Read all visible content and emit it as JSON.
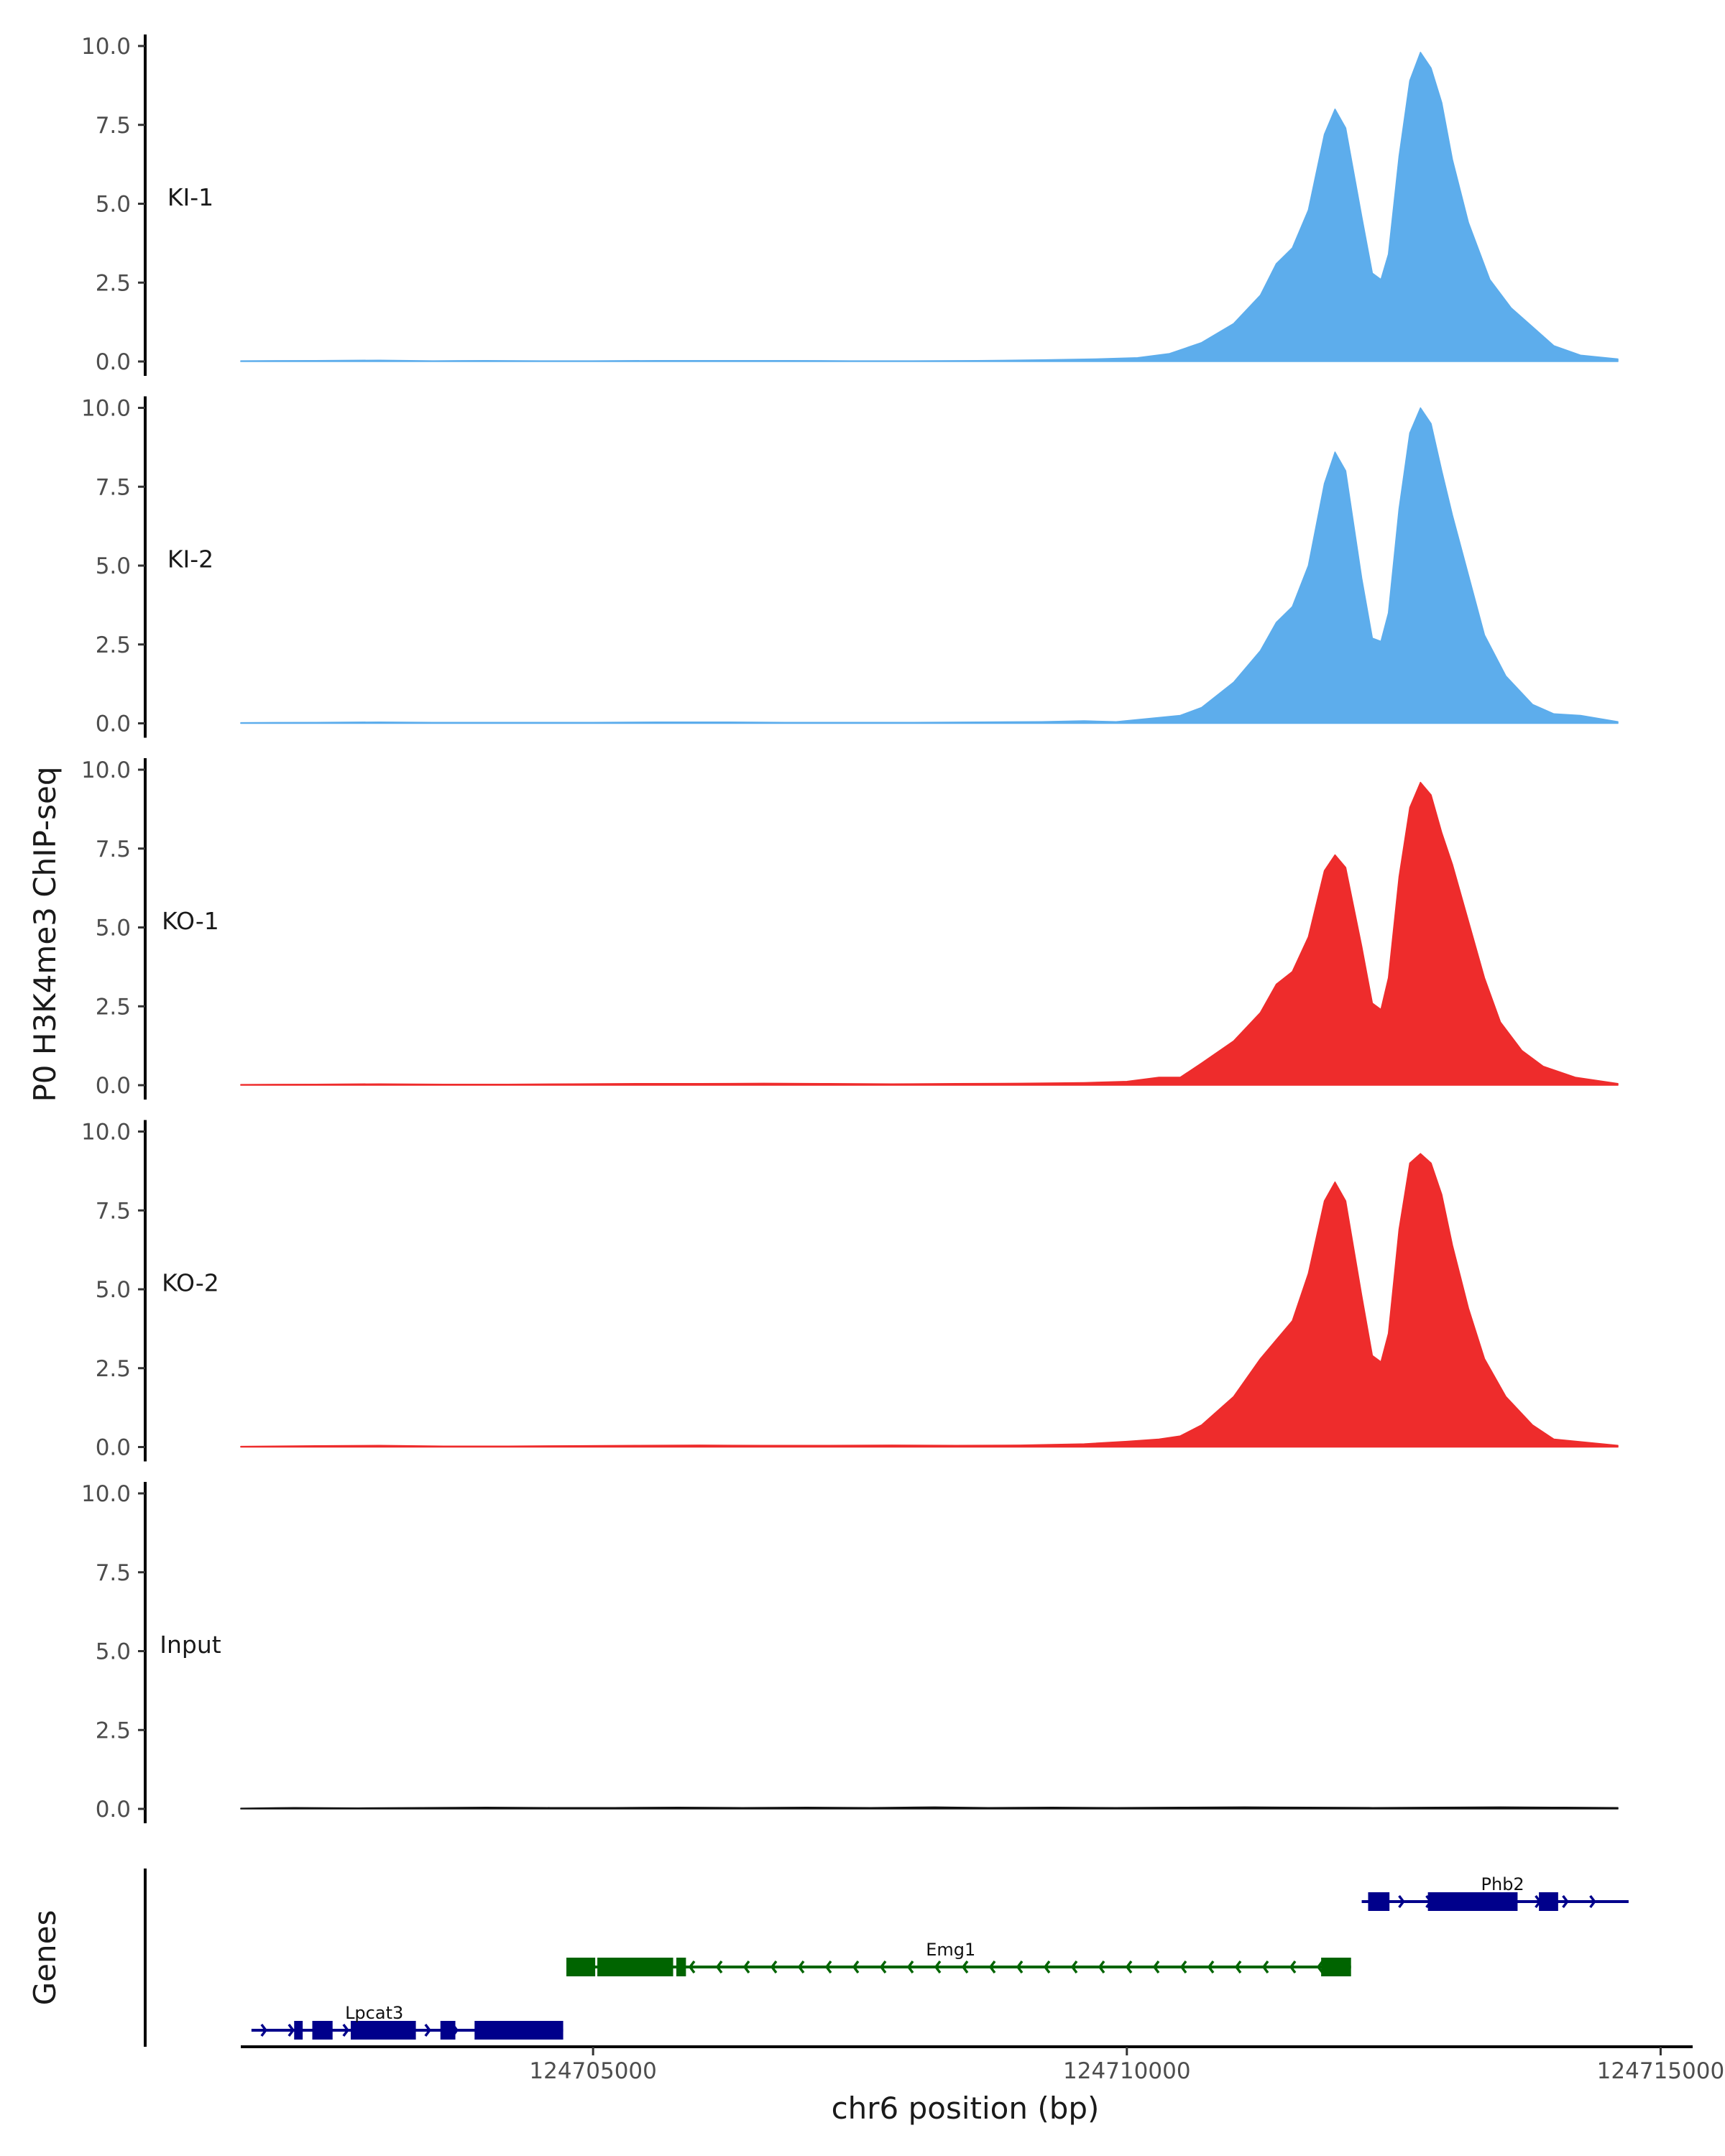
{
  "chart_data": {
    "type": "area",
    "ylabel": "P0 H3K4me3 ChIP-seq",
    "xlabel": "chr6 position (bp)",
    "xlim": [
      124701700,
      124715300
    ],
    "ylim": [
      0,
      10
    ],
    "y_ticks": [
      "0.0",
      "2.5",
      "5.0",
      "7.5",
      "10.0"
    ],
    "x_ticks": [
      {
        "value": 124705000,
        "label": "124705000"
      },
      {
        "value": 124710000,
        "label": "124710000"
      },
      {
        "value": 124715000,
        "label": "124715000"
      }
    ],
    "grid": false,
    "tracks": [
      {
        "label": "KI-1",
        "color": "#5DADEC",
        "points": [
          [
            124701700,
            0.02
          ],
          [
            124702400,
            0.03
          ],
          [
            124703000,
            0.04
          ],
          [
            124703500,
            0.02
          ],
          [
            124704000,
            0.03
          ],
          [
            124704500,
            0.02
          ],
          [
            124705000,
            0.02
          ],
          [
            124705600,
            0.03
          ],
          [
            124706200,
            0.03
          ],
          [
            124706800,
            0.03
          ],
          [
            124707400,
            0.02
          ],
          [
            124708000,
            0.02
          ],
          [
            124708600,
            0.03
          ],
          [
            124709200,
            0.05
          ],
          [
            124709700,
            0.08
          ],
          [
            124710100,
            0.12
          ],
          [
            124710400,
            0.25
          ],
          [
            124710700,
            0.6
          ],
          [
            124711000,
            1.2
          ],
          [
            124711250,
            2.1
          ],
          [
            124711400,
            3.1
          ],
          [
            124711550,
            3.6
          ],
          [
            124711700,
            4.8
          ],
          [
            124711850,
            7.2
          ],
          [
            124711950,
            8.0
          ],
          [
            124712050,
            7.4
          ],
          [
            124712200,
            4.6
          ],
          [
            124712300,
            2.8
          ],
          [
            124712380,
            2.6
          ],
          [
            124712450,
            3.4
          ],
          [
            124712550,
            6.5
          ],
          [
            124712650,
            8.9
          ],
          [
            124712750,
            9.8
          ],
          [
            124712850,
            9.3
          ],
          [
            124712950,
            8.2
          ],
          [
            124713050,
            6.4
          ],
          [
            124713200,
            4.4
          ],
          [
            124713400,
            2.6
          ],
          [
            124713600,
            1.7
          ],
          [
            124713800,
            1.1
          ],
          [
            124714000,
            0.5
          ],
          [
            124714250,
            0.2
          ],
          [
            124714600,
            0.08
          ]
        ]
      },
      {
        "label": "KI-2",
        "color": "#5DADEC",
        "points": [
          [
            124701700,
            0.02
          ],
          [
            124702400,
            0.03
          ],
          [
            124703000,
            0.04
          ],
          [
            124703500,
            0.03
          ],
          [
            124704000,
            0.03
          ],
          [
            124704500,
            0.03
          ],
          [
            124705000,
            0.03
          ],
          [
            124705600,
            0.04
          ],
          [
            124706200,
            0.04
          ],
          [
            124706800,
            0.03
          ],
          [
            124707400,
            0.03
          ],
          [
            124708000,
            0.03
          ],
          [
            124708600,
            0.04
          ],
          [
            124709200,
            0.05
          ],
          [
            124709600,
            0.08
          ],
          [
            124709900,
            0.05
          ],
          [
            124710200,
            0.15
          ],
          [
            124710500,
            0.25
          ],
          [
            124710700,
            0.5
          ],
          [
            124711000,
            1.3
          ],
          [
            124711250,
            2.3
          ],
          [
            124711400,
            3.2
          ],
          [
            124711550,
            3.7
          ],
          [
            124711700,
            5.0
          ],
          [
            124711850,
            7.6
          ],
          [
            124711950,
            8.6
          ],
          [
            124712050,
            8.0
          ],
          [
            124712200,
            4.6
          ],
          [
            124712300,
            2.7
          ],
          [
            124712380,
            2.6
          ],
          [
            124712450,
            3.5
          ],
          [
            124712550,
            6.8
          ],
          [
            124712650,
            9.2
          ],
          [
            124712750,
            10.0
          ],
          [
            124712850,
            9.5
          ],
          [
            124712950,
            8.0
          ],
          [
            124713050,
            6.6
          ],
          [
            124713200,
            4.7
          ],
          [
            124713350,
            2.8
          ],
          [
            124713550,
            1.5
          ],
          [
            124713800,
            0.6
          ],
          [
            124714000,
            0.3
          ],
          [
            124714250,
            0.25
          ],
          [
            124714600,
            0.05
          ]
        ]
      },
      {
        "label": "KO-1",
        "color": "#EE2C2C",
        "points": [
          [
            124701700,
            0.02
          ],
          [
            124702400,
            0.03
          ],
          [
            124703000,
            0.04
          ],
          [
            124703600,
            0.03
          ],
          [
            124704200,
            0.03
          ],
          [
            124704800,
            0.04
          ],
          [
            124705400,
            0.05
          ],
          [
            124706000,
            0.05
          ],
          [
            124706600,
            0.06
          ],
          [
            124707200,
            0.05
          ],
          [
            124707800,
            0.04
          ],
          [
            124708400,
            0.05
          ],
          [
            124709000,
            0.06
          ],
          [
            124709600,
            0.08
          ],
          [
            124710000,
            0.12
          ],
          [
            124710300,
            0.25
          ],
          [
            124710500,
            0.25
          ],
          [
            124710700,
            0.7
          ],
          [
            124711000,
            1.4
          ],
          [
            124711250,
            2.3
          ],
          [
            124711400,
            3.2
          ],
          [
            124711550,
            3.6
          ],
          [
            124711700,
            4.7
          ],
          [
            124711850,
            6.8
          ],
          [
            124711950,
            7.3
          ],
          [
            124712050,
            6.9
          ],
          [
            124712200,
            4.4
          ],
          [
            124712300,
            2.6
          ],
          [
            124712380,
            2.4
          ],
          [
            124712450,
            3.4
          ],
          [
            124712550,
            6.6
          ],
          [
            124712650,
            8.8
          ],
          [
            124712750,
            9.6
          ],
          [
            124712850,
            9.2
          ],
          [
            124712950,
            8.0
          ],
          [
            124713050,
            7.0
          ],
          [
            124713200,
            5.2
          ],
          [
            124713350,
            3.4
          ],
          [
            124713500,
            2.0
          ],
          [
            124713700,
            1.1
          ],
          [
            124713900,
            0.6
          ],
          [
            124714200,
            0.25
          ],
          [
            124714600,
            0.05
          ]
        ]
      },
      {
        "label": "KO-2",
        "color": "#EE2C2C",
        "points": [
          [
            124701700,
            0.02
          ],
          [
            124702400,
            0.04
          ],
          [
            124703000,
            0.05
          ],
          [
            124703600,
            0.03
          ],
          [
            124704200,
            0.03
          ],
          [
            124704800,
            0.04
          ],
          [
            124705400,
            0.05
          ],
          [
            124706000,
            0.06
          ],
          [
            124706600,
            0.05
          ],
          [
            124707200,
            0.05
          ],
          [
            124707800,
            0.06
          ],
          [
            124708400,
            0.05
          ],
          [
            124709000,
            0.06
          ],
          [
            124709600,
            0.1
          ],
          [
            124710000,
            0.18
          ],
          [
            124710300,
            0.25
          ],
          [
            124710500,
            0.35
          ],
          [
            124710700,
            0.7
          ],
          [
            124711000,
            1.6
          ],
          [
            124711250,
            2.8
          ],
          [
            124711400,
            3.4
          ],
          [
            124711550,
            4.0
          ],
          [
            124711700,
            5.5
          ],
          [
            124711850,
            7.8
          ],
          [
            124711950,
            8.4
          ],
          [
            124712050,
            7.8
          ],
          [
            124712200,
            4.8
          ],
          [
            124712300,
            2.9
          ],
          [
            124712380,
            2.7
          ],
          [
            124712450,
            3.6
          ],
          [
            124712550,
            6.9
          ],
          [
            124712650,
            9.0
          ],
          [
            124712750,
            9.3
          ],
          [
            124712850,
            9.0
          ],
          [
            124712950,
            8.0
          ],
          [
            124713050,
            6.4
          ],
          [
            124713200,
            4.4
          ],
          [
            124713350,
            2.8
          ],
          [
            124713550,
            1.6
          ],
          [
            124713800,
            0.7
          ],
          [
            124714000,
            0.25
          ],
          [
            124714300,
            0.15
          ],
          [
            124714600,
            0.05
          ]
        ]
      },
      {
        "label": "Input",
        "color": "#111111",
        "points": [
          [
            124701700,
            0.02
          ],
          [
            124702200,
            0.04
          ],
          [
            124702800,
            0.03
          ],
          [
            124703400,
            0.04
          ],
          [
            124704000,
            0.05
          ],
          [
            124704600,
            0.04
          ],
          [
            124705200,
            0.04
          ],
          [
            124705800,
            0.05
          ],
          [
            124706400,
            0.04
          ],
          [
            124707000,
            0.05
          ],
          [
            124707600,
            0.04
          ],
          [
            124708200,
            0.06
          ],
          [
            124708700,
            0.04
          ],
          [
            124709300,
            0.05
          ],
          [
            124709900,
            0.04
          ],
          [
            124710500,
            0.05
          ],
          [
            124711100,
            0.06
          ],
          [
            124711700,
            0.05
          ],
          [
            124712300,
            0.04
          ],
          [
            124712900,
            0.05
          ],
          [
            124713500,
            0.06
          ],
          [
            124714100,
            0.05
          ],
          [
            124714600,
            0.04
          ]
        ]
      }
    ],
    "genes": {
      "label": "Genes",
      "items": [
        {
          "name": "Phb2",
          "strand": "+",
          "color": "#00008B",
          "row": 0,
          "start": 124712200,
          "end": 124714700,
          "exons": [
            [
              124712260,
              124712460
            ],
            [
              124712820,
              124713660
            ],
            [
              124713860,
              124714040
            ]
          ],
          "label_pos": 124713520
        },
        {
          "name": "Emg1",
          "strand": "-",
          "color": "#006400",
          "row": 1,
          "start": 124704750,
          "end": 124712100,
          "exons": [
            [
              124704750,
              124705020
            ],
            [
              124705040,
              124705750
            ],
            [
              124705780,
              124705870
            ],
            [
              124711820,
              124712100
            ]
          ],
          "label_pos": 124708350
        },
        {
          "name": "Lpcat3",
          "strand": "+",
          "color": "#00008B",
          "row": 2,
          "start": 124701800,
          "end": 124704720,
          "exons": [
            [
              124702200,
              124702280
            ],
            [
              124702370,
              124702560
            ],
            [
              124702730,
              124703340
            ],
            [
              124703570,
              124703710
            ],
            [
              124703890,
              124704720
            ]
          ],
          "label_pos": 124702950
        }
      ]
    }
  }
}
